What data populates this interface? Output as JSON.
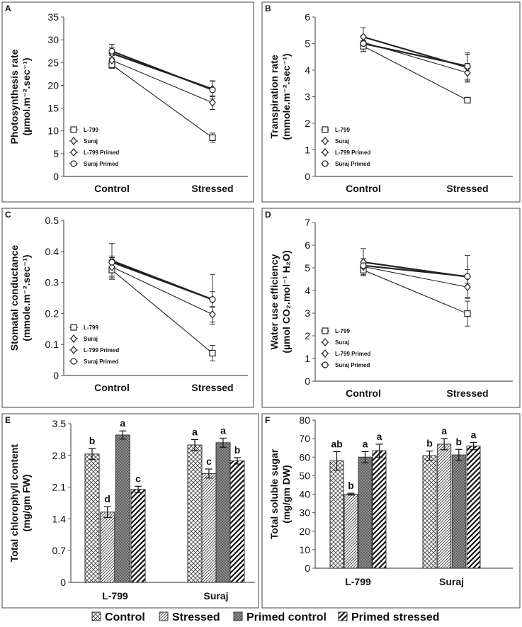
{
  "chart_data": [
    {
      "panel": "A",
      "type": "line",
      "ylabel": "Photosynthesis rate",
      "yunit": "(µmol.m⁻².sec⁻¹)",
      "categories": [
        "Control",
        "Stressed"
      ],
      "ylim": [
        0,
        35
      ],
      "yticks": [
        "0",
        "5",
        "10",
        "15",
        "20",
        "25",
        "30",
        "35"
      ],
      "series": [
        {
          "name": "L-799",
          "marker": "square",
          "values": [
            24.5,
            8.5
          ],
          "errors": [
            0.8,
            1.0
          ]
        },
        {
          "name": "Suraj",
          "marker": "diamond",
          "values": [
            25.5,
            16.2
          ],
          "errors": [
            1.0,
            1.5
          ]
        },
        {
          "name": "L-799 Primed",
          "marker": "diamond",
          "values": [
            27.0,
            19.2
          ],
          "errors": [
            1.2,
            1.7
          ]
        },
        {
          "name": "Suraj Primed",
          "marker": "circle",
          "values": [
            27.5,
            19.0
          ],
          "errors": [
            1.5,
            2.0
          ]
        }
      ]
    },
    {
      "panel": "B",
      "type": "line",
      "ylabel": "Transpiration rate",
      "yunit": "(mmole.m⁻².sec⁻¹)",
      "categories": [
        "Control",
        "Stressed"
      ],
      "ylim": [
        0,
        6
      ],
      "yticks": [
        "0",
        "1",
        "2",
        "3",
        "4",
        "5",
        "6"
      ],
      "series": [
        {
          "name": "L-799",
          "marker": "square",
          "values": [
            4.9,
            2.87
          ],
          "errors": [
            0.2,
            0.05
          ]
        },
        {
          "name": "Suraj",
          "marker": "diamond",
          "values": [
            5.05,
            3.9
          ],
          "errors": [
            0.25,
            0.35
          ]
        },
        {
          "name": "L-799 Primed",
          "marker": "diamond",
          "values": [
            5.25,
            4.1
          ],
          "errors": [
            0.35,
            0.5
          ]
        },
        {
          "name": "Suraj Primed",
          "marker": "circle",
          "values": [
            5.0,
            4.15
          ],
          "errors": [
            0.3,
            0.5
          ]
        }
      ]
    },
    {
      "panel": "C",
      "type": "line",
      "ylabel": "Stomatal conductance",
      "yunit": "(mmole.m⁻².sec⁻¹)",
      "categories": [
        "Control",
        "Stressed"
      ],
      "ylim": [
        0,
        0.5
      ],
      "yticks": [
        "0",
        "0.1",
        "0.2",
        "0.3",
        "0.4",
        "0.5"
      ],
      "series": [
        {
          "name": "L-799",
          "marker": "square",
          "values": [
            0.34,
            0.072
          ],
          "errors": [
            0.03,
            0.025
          ]
        },
        {
          "name": "Suraj",
          "marker": "diamond",
          "values": [
            0.35,
            0.197
          ],
          "errors": [
            0.03,
            0.025
          ]
        },
        {
          "name": "L-799 Primed",
          "marker": "diamond",
          "values": [
            0.37,
            0.245
          ],
          "errors": [
            0.055,
            0.08
          ]
        },
        {
          "name": "Suraj Primed",
          "marker": "circle",
          "values": [
            0.365,
            0.245
          ],
          "errors": [
            0.02,
            0.025
          ]
        }
      ]
    },
    {
      "panel": "D",
      "type": "line",
      "ylabel": "Water use efficiency",
      "yunit": "(µmol CO₂.mol⁻¹ H₂O)",
      "categories": [
        "Control",
        "Stressed"
      ],
      "ylim": [
        0,
        7
      ],
      "yticks": [
        "0",
        "1",
        "2",
        "3",
        "4",
        "5",
        "6",
        "7"
      ],
      "series": [
        {
          "name": "L-799",
          "marker": "square",
          "values": [
            4.9,
            2.98
          ],
          "errors": [
            0.25,
            0.55
          ]
        },
        {
          "name": "Suraj",
          "marker": "diamond",
          "values": [
            5.05,
            4.15
          ],
          "errors": [
            0.35,
            0.45
          ]
        },
        {
          "name": "L-799 Primed",
          "marker": "diamond",
          "values": [
            5.25,
            4.6
          ],
          "errors": [
            0.6,
            0.95
          ]
        },
        {
          "name": "Suraj Primed",
          "marker": "circle",
          "values": [
            5.1,
            4.62
          ],
          "errors": [
            0.3,
            0.3
          ]
        }
      ]
    },
    {
      "panel": "E",
      "type": "bar",
      "ylabel": "Total chlorophyll content",
      "yunit": "(mg/gm FW)",
      "categories": [
        "L-799",
        "Suraj"
      ],
      "ylim": [
        0,
        3.5
      ],
      "yticks": [
        "0",
        "0.7",
        "1.4",
        "2.1",
        "2.8",
        "3.5"
      ],
      "series": [
        {
          "name": "Control",
          "values": [
            2.83,
            3.03
          ],
          "errors": [
            0.12,
            0.12
          ],
          "letters": [
            "b",
            "a"
          ]
        },
        {
          "name": "Stressed",
          "values": [
            1.55,
            2.4
          ],
          "errors": [
            0.12,
            0.1
          ],
          "letters": [
            "d",
            "c"
          ]
        },
        {
          "name": "Primed control",
          "values": [
            3.25,
            3.08
          ],
          "errors": [
            0.09,
            0.1
          ],
          "letters": [
            "a",
            "a"
          ]
        },
        {
          "name": "Primed stressed",
          "values": [
            2.05,
            2.68
          ],
          "errors": [
            0.07,
            0.07
          ],
          "letters": [
            "c",
            "b"
          ]
        }
      ]
    },
    {
      "panel": "F",
      "type": "bar",
      "ylabel": "Total soluble sugar",
      "yunit": "(mg/gm DW)",
      "categories": [
        "L-799",
        "Suraj"
      ],
      "ylim": [
        0,
        80
      ],
      "yticks": [
        "0",
        "10",
        "20",
        "30",
        "40",
        "50",
        "60",
        "70",
        "80"
      ],
      "series": [
        {
          "name": "Control",
          "values": [
            58,
            60.8
          ],
          "errors": [
            5,
            2.5
          ],
          "letters": [
            "ab",
            "b"
          ]
        },
        {
          "name": "Stressed",
          "values": [
            40,
            67
          ],
          "errors": [
            0.5,
            3
          ],
          "letters": [
            "b",
            "a"
          ]
        },
        {
          "name": "Primed control",
          "values": [
            60,
            61.2
          ],
          "errors": [
            3,
            3
          ],
          "letters": [
            "a",
            "b"
          ]
        },
        {
          "name": "Primed stressed",
          "values": [
            63.5,
            66
          ],
          "errors": [
            3.5,
            2
          ],
          "letters": [
            "a",
            "a"
          ]
        }
      ]
    }
  ],
  "legend_bottom": [
    "Control",
    "Stressed",
    "Primed control",
    "Primed stressed"
  ]
}
